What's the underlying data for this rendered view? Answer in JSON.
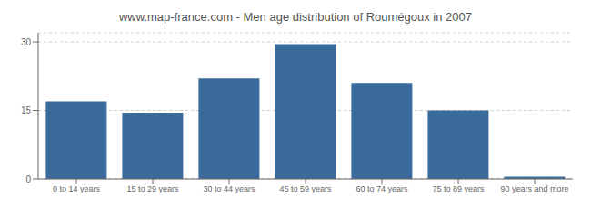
{
  "chart_data": {
    "type": "bar",
    "title": "www.map-france.com - Men age distribution of Roumégoux in 2007",
    "categories": [
      "0 to 14 years",
      "15 to 29 years",
      "30 to 44 years",
      "45 to 59 years",
      "60 to 74 years",
      "75 to 89 years",
      "90 years and more"
    ],
    "values": [
      17,
      14.5,
      22,
      29.5,
      21,
      15,
      0.5
    ],
    "color": "#3a6a9a",
    "ylim": [
      0,
      32
    ],
    "yticks": [
      0,
      15,
      30
    ],
    "grid": true
  }
}
